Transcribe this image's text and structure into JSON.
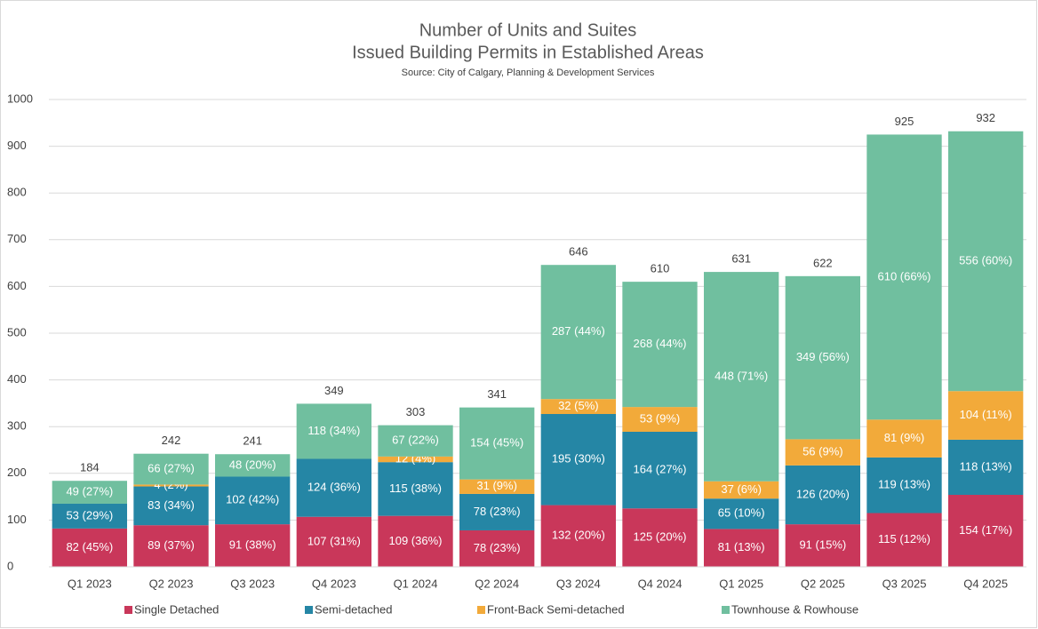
{
  "chart_data": {
    "type": "stacked_bar",
    "title": "Number of Units and Suites",
    "subtitle": "Issued Building Permits in Established Areas",
    "source": "Source: City of Calgary, Planning & Development Services",
    "categories": [
      "Q1 2023",
      "Q2 2023",
      "Q3 2023",
      "Q4 2023",
      "Q1 2024",
      "Q2 2024",
      "Q3 2024",
      "Q4 2024",
      "Q1 2025",
      "Q2 2025",
      "Q3 2025",
      "Q4 2025"
    ],
    "series": [
      {
        "name": "Single Detached",
        "color": "#c9375a",
        "values": [
          82,
          89,
          91,
          107,
          109,
          78,
          132,
          125,
          81,
          91,
          115,
          154
        ],
        "value_labels": [
          "82 (45%)",
          "89 (37%)",
          "91 (38%)",
          "107 (31%)",
          "109 (36%)",
          "78 (23%)",
          "132 (20%)",
          "125 (20%)",
          "81 (13%)",
          "91 (15%)",
          "115 (12%)",
          "154 (17%)"
        ]
      },
      {
        "name": "Semi-detached",
        "color": "#2586a5",
        "values": [
          53,
          83,
          102,
          124,
          115,
          78,
          195,
          164,
          65,
          126,
          119,
          118
        ],
        "value_labels": [
          "53 (29%)",
          "83 (34%)",
          "102 (42%)",
          "124 (36%)",
          "115 (38%)",
          "78 (23%)",
          "195 (30%)",
          "164 (27%)",
          "65 (10%)",
          "126 (20%)",
          "119 (13%)",
          "118 (13%)"
        ]
      },
      {
        "name": "Front-Back Semi-detached",
        "color": "#f2aa3a",
        "values": [
          null,
          4,
          null,
          null,
          12,
          31,
          32,
          53,
          37,
          56,
          81,
          104
        ],
        "value_labels": [
          null,
          "4 (2%)",
          null,
          null,
          "12 (4%)",
          "31 (9%)",
          "32 (5%)",
          "53 (9%)",
          "37 (6%)",
          "56 (9%)",
          "81 (9%)",
          "104 (11%)"
        ]
      },
      {
        "name": "Townhouse & Rowhouse",
        "color": "#70bf9f",
        "values": [
          49,
          66,
          48,
          118,
          67,
          154,
          287,
          268,
          448,
          349,
          610,
          556
        ],
        "value_labels": [
          "49 (27%)",
          "66 (27%)",
          "48 (20%)",
          "118 (34%)",
          "67 (22%)",
          "154 (45%)",
          "287 (44%)",
          "268 (44%)",
          "448 (71%)",
          "349 (56%)",
          "610 (66%)",
          "556 (60%)"
        ]
      }
    ],
    "totals": [
      184,
      242,
      241,
      349,
      303,
      341,
      646,
      610,
      631,
      622,
      925,
      932
    ],
    "ylim": [
      0,
      1000
    ],
    "yticks": [
      0,
      100,
      200,
      300,
      400,
      500,
      600,
      700,
      800,
      900,
      1000
    ],
    "grid": true,
    "legend": "bottom"
  }
}
